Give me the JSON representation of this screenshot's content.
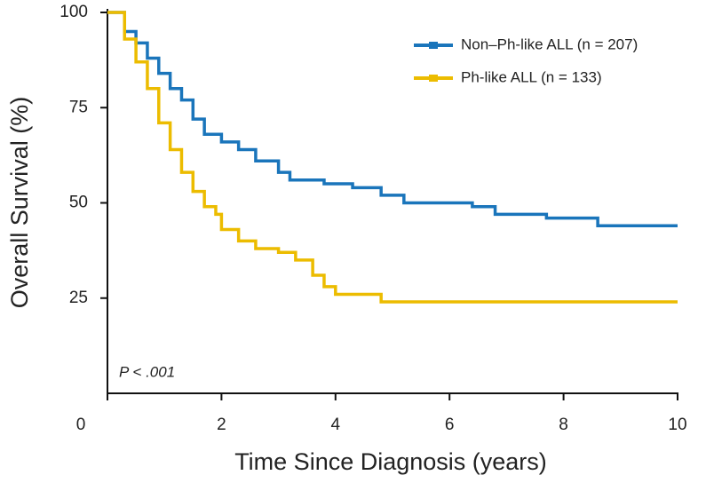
{
  "chart_data": {
    "type": "line",
    "step": true,
    "xlabel": "Time Since Diagnosis (years)",
    "ylabel": "Overall Survival (%)",
    "annotation": "P < .001",
    "xlim": [
      0,
      10
    ],
    "xticks": [
      0,
      2,
      4,
      6,
      8,
      10
    ],
    "ylim": [
      0,
      100
    ],
    "yticks": [
      25,
      50,
      75,
      100
    ],
    "legend": "upper right",
    "series": [
      {
        "name": "Non–Ph-like ALL (n = 207)",
        "color": "#1a75bb",
        "x": [
          0,
          0.3,
          0.5,
          0.7,
          0.9,
          1.1,
          1.3,
          1.5,
          1.7,
          2.0,
          2.3,
          2.6,
          3.0,
          3.2,
          3.8,
          4.3,
          4.8,
          5.2,
          6.4,
          6.8,
          7.7,
          8.6,
          10
        ],
        "values": [
          100,
          95,
          92,
          88,
          84,
          80,
          77,
          72,
          68,
          66,
          64,
          61,
          58,
          56,
          55,
          54,
          52,
          50,
          49,
          47,
          46,
          44,
          44
        ]
      },
      {
        "name": "Ph-like ALL (n = 133)",
        "color": "#ecbc00",
        "x": [
          0,
          0.3,
          0.5,
          0.7,
          0.9,
          1.1,
          1.3,
          1.5,
          1.7,
          1.9,
          2.0,
          2.3,
          2.6,
          3.0,
          3.3,
          3.6,
          3.8,
          4.0,
          4.8,
          10
        ],
        "values": [
          100,
          93,
          87,
          80,
          71,
          64,
          58,
          53,
          49,
          47,
          43,
          40,
          38,
          37,
          35,
          31,
          28,
          26,
          24,
          24
        ]
      }
    ]
  }
}
